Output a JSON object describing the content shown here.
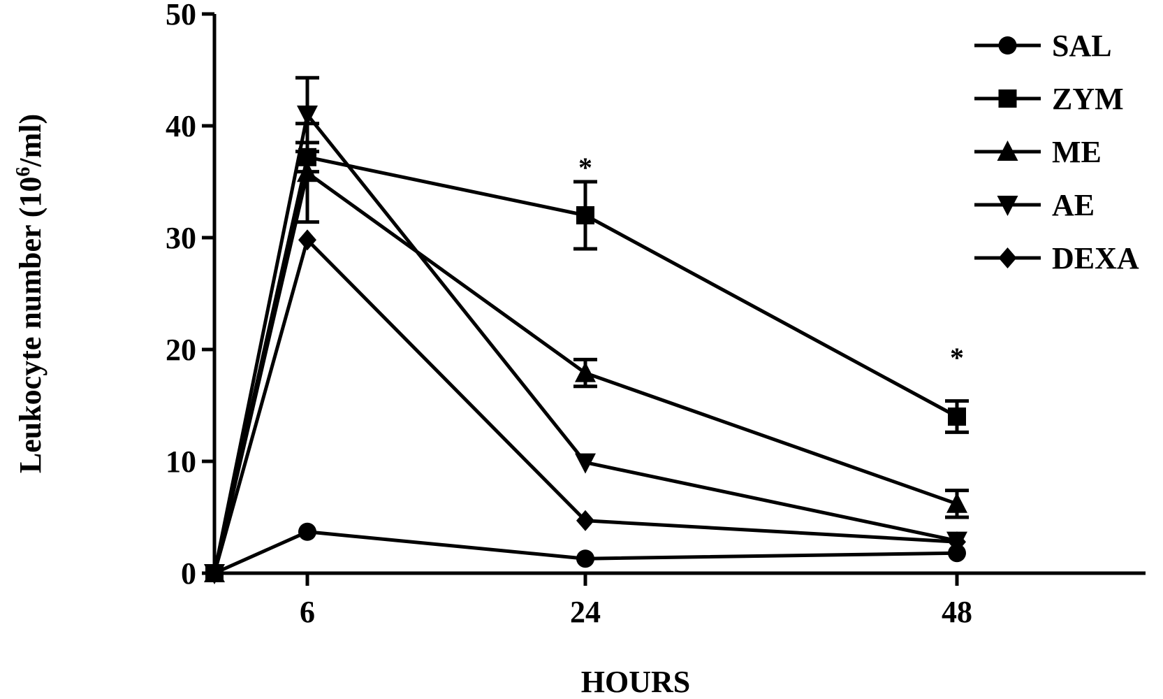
{
  "chart_data": {
    "type": "line",
    "xlabel": "HOURS",
    "ylabel": "Leukocyte number (10",
    "ylabel_sup": "6",
    "ylabel_tail": "/ml)",
    "x": [
      0,
      6,
      24,
      48
    ],
    "xticks": [
      6,
      24,
      48
    ],
    "x_tick_labels": [
      "6",
      "24",
      "48"
    ],
    "yticks": [
      0,
      10,
      20,
      30,
      40,
      50
    ],
    "y_tick_labels": [
      "0",
      "10",
      "20",
      "30",
      "40",
      "50"
    ],
    "ylim": [
      0,
      50
    ],
    "grid": false,
    "legend_position": "top-right",
    "series": [
      {
        "name": "SAL",
        "marker": "circle",
        "values": [
          0,
          3.7,
          1.3,
          1.8
        ],
        "err": [
          0,
          0,
          0,
          0
        ]
      },
      {
        "name": "ZYM",
        "marker": "square",
        "values": [
          0,
          37.2,
          32,
          14
        ],
        "err": [
          0,
          1.3,
          3,
          1.4
        ]
      },
      {
        "name": "ME",
        "marker": "triangle-up",
        "values": [
          0,
          35.8,
          17.9,
          6.2
        ],
        "err": [
          0,
          4.4,
          1.2,
          1.2
        ]
      },
      {
        "name": "AE",
        "marker": "triangle-down",
        "values": [
          0,
          41,
          9.9,
          2.9
        ],
        "err": [
          0,
          3.3,
          0,
          0
        ]
      },
      {
        "name": "DEXA",
        "marker": "diamond",
        "values": [
          0,
          29.8,
          4.7,
          2.8
        ],
        "err": [
          0,
          0,
          0,
          0
        ]
      }
    ],
    "annotations": [
      {
        "text": "*",
        "x": 24,
        "y": 36.3
      },
      {
        "text": "*",
        "x": 48,
        "y": 19.3
      }
    ]
  }
}
